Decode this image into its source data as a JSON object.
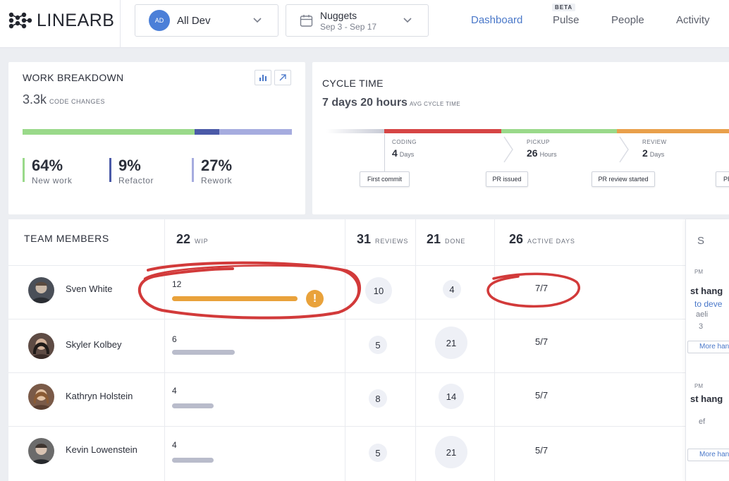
{
  "app": {
    "logo_text": "LINEARB"
  },
  "header": {
    "team_selector": {
      "avatar_initials": "AD",
      "label": "All Dev"
    },
    "sprint_selector": {
      "name": "Nuggets",
      "range": "Sep 3 - Sep 17"
    },
    "nav": [
      {
        "label": "Dashboard",
        "active": true
      },
      {
        "label": "Pulse",
        "badge": "BETA"
      },
      {
        "label": "People"
      },
      {
        "label": "Activity"
      }
    ]
  },
  "work_breakdown": {
    "title": "WORK BREAKDOWN",
    "total": "3.3k",
    "total_label": "CODE CHANGES",
    "segments": [
      {
        "label": "New work",
        "pct": "64%",
        "value": 64,
        "color": "#9ad98a"
      },
      {
        "label": "Refactor",
        "pct": "9%",
        "value": 9,
        "color": "#4b5aa8"
      },
      {
        "label": "Rework",
        "pct": "27%",
        "value": 27,
        "color": "#a6acdf"
      }
    ]
  },
  "cycle_time": {
    "title": "CYCLE TIME",
    "total": "7 days 20 hours",
    "total_label": "AVG CYCLE TIME",
    "phases": [
      {
        "name": "CODING",
        "value": "4",
        "unit": "Days",
        "color": "#d64545"
      },
      {
        "name": "PICKUP",
        "value": "26",
        "unit": "Hours",
        "color": "#9ad98a"
      },
      {
        "name": "REVIEW",
        "value": "2",
        "unit": "Days",
        "color": "#e9a04b"
      }
    ],
    "markers": [
      "First commit",
      "PR issued",
      "PR review started",
      "PR"
    ]
  },
  "team_table": {
    "title": "TEAM MEMBERS",
    "columns": {
      "wip": {
        "value": "22",
        "label": "WIP"
      },
      "reviews": {
        "value": "31",
        "label": "REVIEWS"
      },
      "done": {
        "value": "21",
        "label": "DONE"
      },
      "active_days": {
        "value": "26",
        "label": "ACTIVE DAYS"
      }
    },
    "members": [
      {
        "name": "Sven White",
        "wip": "12",
        "wip_value": 12,
        "reviews": "10",
        "done": "4",
        "active_days": "7/7",
        "warning": "!"
      },
      {
        "name": "Skyler Kolbey",
        "wip": "6",
        "wip_value": 6,
        "reviews": "5",
        "done": "21",
        "active_days": "5/7"
      },
      {
        "name": "Kathryn Holstein",
        "wip": "4",
        "wip_value": 4,
        "reviews": "8",
        "done": "14",
        "active_days": "5/7"
      },
      {
        "name": "Kevin Lowenstein",
        "wip": "4",
        "wip_value": 4,
        "reviews": "5",
        "done": "21",
        "active_days": "5/7"
      }
    ]
  },
  "side_panel": {
    "header_fragment": "S",
    "items": [
      {
        "time": "PM",
        "title": "st hang",
        "link": "to deve",
        "author": "aeli",
        "count": "3",
        "button": "More han"
      },
      {
        "time": "PM",
        "title": "st hang",
        "author": "ef",
        "button": "More han"
      }
    ]
  },
  "colors": {
    "accent": "#4a78c9",
    "warning": "#e9a23b",
    "wip_high": "#e9a23b",
    "wip_normal": "#b9bccb",
    "annotation": "#d23a3a"
  },
  "icons": [
    "linearb-logo-icon",
    "chevron-down-icon",
    "calendar-icon",
    "bar-chart-icon",
    "expand-arrow-icon",
    "warning-icon"
  ]
}
